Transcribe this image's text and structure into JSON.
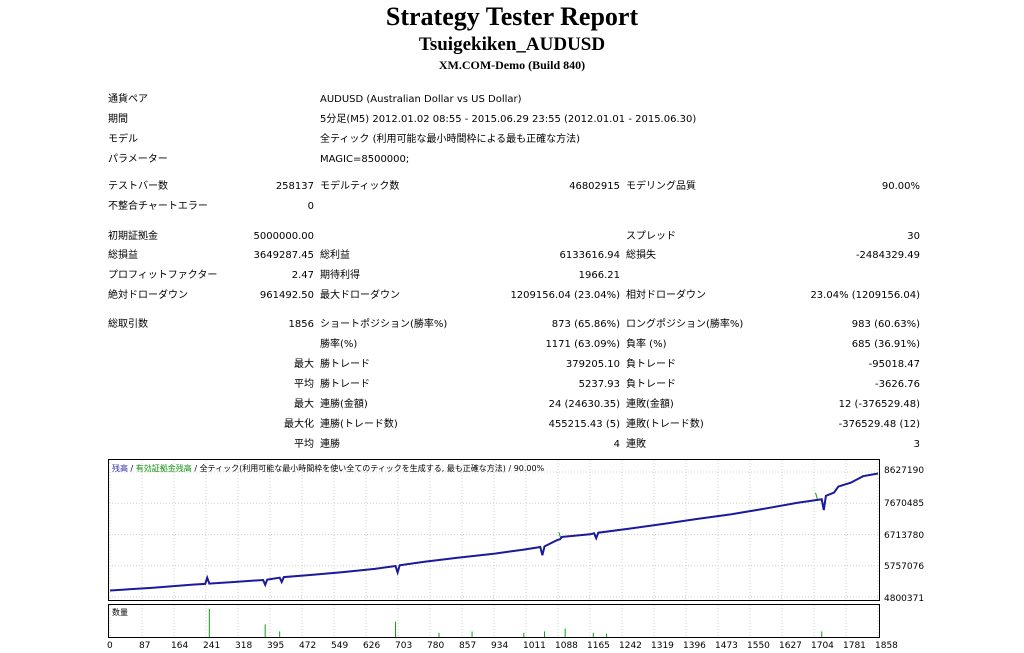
{
  "report": {
    "title": "Strategy Tester Report",
    "ea_name": "Tsuigekiken_AUDUSD",
    "server": "XM.COM-Demo (Build 840)"
  },
  "info": [
    {
      "label": "通貨ペア",
      "value": "AUDUSD (Australian Dollar vs US Dollar)"
    },
    {
      "label": "期間",
      "value": "5分足(M5) 2012.01.02 08:55 - 2015.06.29 23:55 (2012.01.01 - 2015.06.30)"
    },
    {
      "label": "モデル",
      "value": "全ティック (利用可能な最小時間枠による最も正確な方法)"
    },
    {
      "label": "パラメーター",
      "value": "MAGIC=8500000;"
    }
  ],
  "stats": {
    "test_bars_label": "テストバー数",
    "test_bars": "258137",
    "model_ticks_label": "モデルティック数",
    "model_ticks": "46802915",
    "model_quality_label": "モデリング品質",
    "model_quality": "90.00%",
    "mismatch_label": "不整合チャートエラー",
    "mismatch": "0",
    "deposit_label": "初期証拠金",
    "deposit": "5000000.00",
    "spread_label": "スプレッド",
    "spread": "30",
    "net_profit_label": "総損益",
    "net_profit": "3649287.45",
    "gross_profit_label": "総利益",
    "gross_profit": "6133616.94",
    "gross_loss_label": "総損失",
    "gross_loss": "-2484329.49",
    "profit_factor_label": "プロフィットファクター",
    "profit_factor": "2.47",
    "expected_label": "期待利得",
    "expected": "1966.21",
    "abs_dd_label": "絶対ドローダウン",
    "abs_dd": "961492.50",
    "max_dd_label": "最大ドローダウン",
    "max_dd": "1209156.04 (23.04%)",
    "rel_dd_label": "相対ドローダウン",
    "rel_dd": "23.04% (1209156.04)",
    "total_trades_label": "総取引数",
    "total_trades": "1856",
    "short_label": "ショートポジション(勝率%)",
    "short": "873 (65.86%)",
    "long_label": "ロングポジション(勝率%)",
    "long": "983 (60.63%)",
    "win_rate_label": "勝率(%)",
    "win_rate": "1171 (63.09%)",
    "loss_rate_label": "負率 (%)",
    "loss_rate": "685 (36.91%)",
    "max_pre": "最大",
    "avg_pre": "平均",
    "maxized_pre": "最大化",
    "largest_win_label": "勝トレード",
    "largest_win": "379205.10",
    "largest_loss_label": "負トレード",
    "largest_loss": "-95018.47",
    "avg_win_label": "勝トレード",
    "avg_win": "5237.93",
    "avg_loss_label": "負トレード",
    "avg_loss": "-3626.76",
    "max_cons_wins_label": "連勝(金額)",
    "max_cons_wins": "24 (24630.35)",
    "max_cons_losses_label": "連敗(金額)",
    "max_cons_losses": "12 (-376529.48)",
    "max_cons_profit_label": "連勝(トレード数)",
    "max_cons_profit": "455215.43 (5)",
    "max_cons_loss_label": "連敗(トレード数)",
    "max_cons_loss": "-376529.48 (12)",
    "avg_cons_wins_label": "連勝",
    "avg_cons_wins": "4",
    "avg_cons_losses_label": "連敗",
    "avg_cons_losses": "3"
  },
  "chart_legend": {
    "balance": "残高",
    "sep1": " / ",
    "equity": "有効証拠金残高",
    "rest": " / 全ティック(利用可能な最小時間枠を使い全てのティックを生成する, 最も正確な方法) / 90.00%"
  },
  "volume_label": "数量",
  "colors": {
    "balance": "#1a1a9a",
    "equity": "#10a010",
    "grid": "#d0d0d0",
    "volume": "#10a010"
  },
  "chart_data": {
    "type": "line",
    "xlim": [
      0,
      1856
    ],
    "ylim": [
      4800371,
      8627190
    ],
    "y_ticks": [
      "8627190",
      "7670485",
      "6713780",
      "5757076",
      "4800371"
    ],
    "x_ticks": [
      "0",
      "87",
      "164",
      "241",
      "318",
      "395",
      "472",
      "549",
      "626",
      "703",
      "780",
      "857",
      "934",
      "1011",
      "1088",
      "1165",
      "1242",
      "1319",
      "1396",
      "1473",
      "1550",
      "1627",
      "1704",
      "1781",
      "1858"
    ],
    "series": [
      {
        "x": [
          0,
          100,
          200,
          230,
          235,
          240,
          300,
          370,
          375,
          380,
          410,
          415,
          420,
          480,
          560,
          640,
          690,
          695,
          700,
          760,
          840,
          930,
          1000,
          1040,
          1045,
          1050,
          1080,
          1088,
          1092,
          1100,
          1160,
          1170,
          1175,
          1180,
          1260,
          1340,
          1420,
          1500,
          1580,
          1660,
          1720,
          1725,
          1730,
          1750,
          1760,
          1790,
          1820,
          1856
        ],
        "y": [
          5000000,
          5080000,
          5180000,
          5200000,
          5390000,
          5210000,
          5260000,
          5320000,
          5170000,
          5330000,
          5390000,
          5260000,
          5410000,
          5470000,
          5560000,
          5660000,
          5750000,
          5550000,
          5770000,
          5880000,
          6000000,
          6130000,
          6250000,
          6330000,
          6080000,
          6350000,
          6540000,
          6570000,
          6640000,
          6650000,
          6720000,
          6750000,
          6600000,
          6770000,
          6900000,
          7040000,
          7190000,
          7330000,
          7500000,
          7680000,
          7790000,
          7460000,
          7900000,
          8000000,
          8180000,
          8300000,
          8500000,
          8580000
        ]
      },
      {
        "x": [
          1085,
          1090,
          1705,
          1710
        ],
        "y": [
          6780000,
          6570000,
          7990000,
          7780000
        ]
      }
    ],
    "volume": {
      "x": [
        240,
        375,
        410,
        690,
        795,
        875,
        1000,
        1050,
        1100,
        1168,
        1200,
        1720
      ],
      "h": [
        1.0,
        0.45,
        0.2,
        0.55,
        0.15,
        0.2,
        0.15,
        0.2,
        0.3,
        0.15,
        0.12,
        0.2
      ]
    }
  }
}
